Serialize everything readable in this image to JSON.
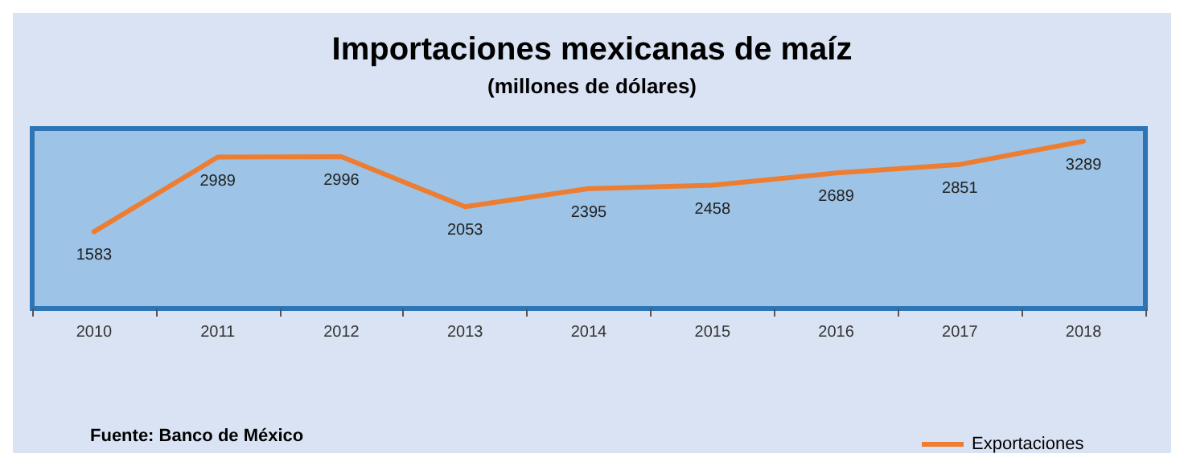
{
  "chart_data": {
    "type": "line",
    "title": "Importaciones mexicanas de maíz",
    "subtitle": "(millones de dólares)",
    "categories": [
      "2010",
      "2011",
      "2012",
      "2013",
      "2014",
      "2015",
      "2016",
      "2017",
      "2018"
    ],
    "series": [
      {
        "name": "Exportaciones",
        "color": "#ed7d31",
        "values": [
          1583,
          2989,
          2996,
          2053,
          2395,
          2458,
          2689,
          2851,
          3289
        ]
      }
    ],
    "data_labels": true,
    "grid": false,
    "marker": "none",
    "line_style": "solid",
    "legend": "bottom right",
    "tick_labels": "x",
    "annotations": [
      "Fuente: Banco de México"
    ]
  }
}
